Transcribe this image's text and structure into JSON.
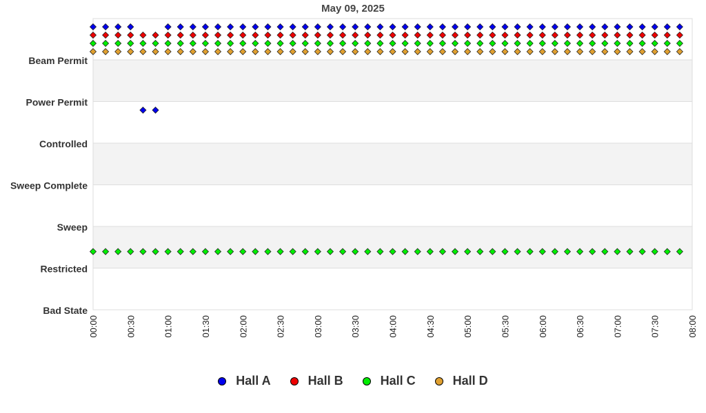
{
  "chart_data": {
    "type": "scatter",
    "title": "May 09, 2025",
    "xlabel": "",
    "ylabel": "",
    "x_ticks": [
      "00:00",
      "00:30",
      "01:00",
      "01:30",
      "02:00",
      "02:30",
      "03:00",
      "03:30",
      "04:00",
      "04:30",
      "05:00",
      "05:30",
      "06:00",
      "06:30",
      "07:00",
      "07:30",
      "08:00"
    ],
    "xlim": [
      "00:00",
      "08:00"
    ],
    "y_categories": [
      "Beam Permit",
      "Power Permit",
      "Controlled",
      "Sweep Complete",
      "Sweep",
      "Restricted",
      "Bad State"
    ],
    "grid": "alternating horizontal bands",
    "legend_position": "bottom",
    "sample_interval_minutes": 10,
    "series": [
      {
        "name": "Hall A",
        "color": "#0000ee",
        "overrides": [
          {
            "time": "00:30",
            "state": "Beam Permit"
          },
          {
            "time": "00:40",
            "state": "Power Permit"
          },
          {
            "time": "00:50",
            "state": "Power Permit"
          },
          {
            "time": "01:00",
            "state": "Beam Permit"
          }
        ],
        "default_state": "Beam Permit",
        "times": [
          "00:00",
          "00:10",
          "00:20",
          "00:30",
          "00:40",
          "00:50",
          "01:00",
          "01:10",
          "01:20",
          "01:30",
          "01:40",
          "01:50",
          "02:00",
          "02:10",
          "02:20",
          "02:30",
          "02:40",
          "02:50",
          "03:00",
          "03:10",
          "03:20",
          "03:30",
          "03:40",
          "03:50",
          "04:00",
          "04:10",
          "04:20",
          "04:30",
          "04:40",
          "04:50",
          "05:00",
          "05:10",
          "05:20",
          "05:30",
          "05:40",
          "05:50",
          "06:00",
          "06:10",
          "06:20",
          "06:30",
          "06:40",
          "06:50",
          "07:00",
          "07:10",
          "07:20",
          "07:30",
          "07:40",
          "07:50"
        ],
        "states": [
          "Beam Permit",
          "Beam Permit",
          "Beam Permit",
          "Beam Permit",
          "Power Permit",
          "Power Permit",
          "Beam Permit",
          "Beam Permit",
          "Beam Permit",
          "Beam Permit",
          "Beam Permit",
          "Beam Permit",
          "Beam Permit",
          "Beam Permit",
          "Beam Permit",
          "Beam Permit",
          "Beam Permit",
          "Beam Permit",
          "Beam Permit",
          "Beam Permit",
          "Beam Permit",
          "Beam Permit",
          "Beam Permit",
          "Beam Permit",
          "Beam Permit",
          "Beam Permit",
          "Beam Permit",
          "Beam Permit",
          "Beam Permit",
          "Beam Permit",
          "Beam Permit",
          "Beam Permit",
          "Beam Permit",
          "Beam Permit",
          "Beam Permit",
          "Beam Permit",
          "Beam Permit",
          "Beam Permit",
          "Beam Permit",
          "Beam Permit",
          "Beam Permit",
          "Beam Permit",
          "Beam Permit",
          "Beam Permit",
          "Beam Permit",
          "Beam Permit",
          "Beam Permit",
          "Beam Permit"
        ]
      },
      {
        "name": "Hall B",
        "color": "#ee0000",
        "times": [
          "00:00",
          "00:10",
          "00:20",
          "00:30",
          "00:40",
          "00:50",
          "01:00",
          "01:10",
          "01:20",
          "01:30",
          "01:40",
          "01:50",
          "02:00",
          "02:10",
          "02:20",
          "02:30",
          "02:40",
          "02:50",
          "03:00",
          "03:10",
          "03:20",
          "03:30",
          "03:40",
          "03:50",
          "04:00",
          "04:10",
          "04:20",
          "04:30",
          "04:40",
          "04:50",
          "05:00",
          "05:10",
          "05:20",
          "05:30",
          "05:40",
          "05:50",
          "06:00",
          "06:10",
          "06:20",
          "06:30",
          "06:40",
          "06:50",
          "07:00",
          "07:10",
          "07:20",
          "07:30",
          "07:40",
          "07:50"
        ],
        "states": [
          "Beam Permit",
          "Beam Permit",
          "Beam Permit",
          "Beam Permit",
          "Beam Permit",
          "Beam Permit",
          "Beam Permit",
          "Beam Permit",
          "Beam Permit",
          "Beam Permit",
          "Beam Permit",
          "Beam Permit",
          "Beam Permit",
          "Beam Permit",
          "Beam Permit",
          "Beam Permit",
          "Beam Permit",
          "Beam Permit",
          "Beam Permit",
          "Beam Permit",
          "Beam Permit",
          "Beam Permit",
          "Beam Permit",
          "Beam Permit",
          "Beam Permit",
          "Beam Permit",
          "Beam Permit",
          "Beam Permit",
          "Beam Permit",
          "Beam Permit",
          "Beam Permit",
          "Beam Permit",
          "Beam Permit",
          "Beam Permit",
          "Beam Permit",
          "Beam Permit",
          "Beam Permit",
          "Beam Permit",
          "Beam Permit",
          "Beam Permit",
          "Beam Permit",
          "Beam Permit",
          "Beam Permit",
          "Beam Permit",
          "Beam Permit",
          "Beam Permit",
          "Beam Permit",
          "Beam Permit"
        ]
      },
      {
        "name": "Hall C",
        "color": "#00ee00",
        "times": [
          "00:00",
          "00:10",
          "00:20",
          "00:30",
          "00:40",
          "00:50",
          "01:00",
          "01:10",
          "01:20",
          "01:30",
          "01:40",
          "01:50",
          "02:00",
          "02:10",
          "02:20",
          "02:30",
          "02:40",
          "02:50",
          "03:00",
          "03:10",
          "03:20",
          "03:30",
          "03:40",
          "03:50",
          "04:00",
          "04:10",
          "04:20",
          "04:30",
          "04:40",
          "04:50",
          "05:00",
          "05:10",
          "05:20",
          "05:30",
          "05:40",
          "05:50",
          "06:00",
          "06:10",
          "06:20",
          "06:30",
          "06:40",
          "06:50",
          "07:00",
          "07:10",
          "07:20",
          "07:30",
          "07:40",
          "07:50"
        ],
        "states": [
          "Beam Permit",
          "Beam Permit",
          "Beam Permit",
          "Beam Permit",
          "Beam Permit",
          "Beam Permit",
          "Beam Permit",
          "Beam Permit",
          "Beam Permit",
          "Beam Permit",
          "Beam Permit",
          "Beam Permit",
          "Beam Permit",
          "Beam Permit",
          "Beam Permit",
          "Beam Permit",
          "Beam Permit",
          "Beam Permit",
          "Beam Permit",
          "Beam Permit",
          "Beam Permit",
          "Beam Permit",
          "Beam Permit",
          "Beam Permit",
          "Beam Permit",
          "Beam Permit",
          "Beam Permit",
          "Beam Permit",
          "Beam Permit",
          "Beam Permit",
          "Beam Permit",
          "Beam Permit",
          "Beam Permit",
          "Beam Permit",
          "Beam Permit",
          "Beam Permit",
          "Beam Permit",
          "Beam Permit",
          "Beam Permit",
          "Beam Permit",
          "Beam Permit",
          "Beam Permit",
          "Beam Permit",
          "Beam Permit",
          "Beam Permit",
          "Beam Permit",
          "Beam Permit",
          "Beam Permit"
        ]
      },
      {
        "name": "Hall D",
        "color": "#e0a030",
        "times": [
          "00:00",
          "00:10",
          "00:20",
          "00:30",
          "00:40",
          "00:50",
          "01:00",
          "01:10",
          "01:20",
          "01:30",
          "01:40",
          "01:50",
          "02:00",
          "02:10",
          "02:20",
          "02:30",
          "02:40",
          "02:50",
          "03:00",
          "03:10",
          "03:20",
          "03:30",
          "03:40",
          "03:50",
          "04:00",
          "04:10",
          "04:20",
          "04:30",
          "04:40",
          "04:50",
          "05:00",
          "05:10",
          "05:20",
          "05:30",
          "05:40",
          "05:50",
          "06:00",
          "06:10",
          "06:20",
          "06:30",
          "06:40",
          "06:50",
          "07:00",
          "07:10",
          "07:20",
          "07:30",
          "07:40",
          "07:50"
        ],
        "states": [
          "Beam Permit",
          "Beam Permit",
          "Beam Permit",
          "Beam Permit",
          "Beam Permit",
          "Beam Permit",
          "Beam Permit",
          "Beam Permit",
          "Beam Permit",
          "Beam Permit",
          "Beam Permit",
          "Beam Permit",
          "Beam Permit",
          "Beam Permit",
          "Beam Permit",
          "Beam Permit",
          "Beam Permit",
          "Beam Permit",
          "Beam Permit",
          "Beam Permit",
          "Beam Permit",
          "Beam Permit",
          "Beam Permit",
          "Beam Permit",
          "Beam Permit",
          "Beam Permit",
          "Beam Permit",
          "Beam Permit",
          "Beam Permit",
          "Beam Permit",
          "Beam Permit",
          "Beam Permit",
          "Beam Permit",
          "Beam Permit",
          "Beam Permit",
          "Beam Permit",
          "Beam Permit",
          "Beam Permit",
          "Beam Permit",
          "Beam Permit",
          "Beam Permit",
          "Beam Permit",
          "Beam Permit",
          "Beam Permit",
          "Beam Permit",
          "Beam Permit",
          "Beam Permit",
          "Beam Permit"
        ]
      },
      {
        "name": "Hall C",
        "color": "#00ee00",
        "times": [
          "00:00",
          "00:10",
          "00:20",
          "00:30",
          "00:40",
          "00:50",
          "01:00",
          "01:10",
          "01:20",
          "01:30",
          "01:40",
          "01:50",
          "02:00",
          "02:10",
          "02:20",
          "02:30",
          "02:40",
          "02:50",
          "03:00",
          "03:10",
          "03:20",
          "03:30",
          "03:40",
          "03:50",
          "04:00",
          "04:10",
          "04:20",
          "04:30",
          "04:40",
          "04:50",
          "05:00",
          "05:10",
          "05:20",
          "05:30",
          "05:40",
          "05:50",
          "06:00",
          "06:10",
          "06:20",
          "06:30",
          "06:40",
          "06:50",
          "07:00",
          "07:10",
          "07:20",
          "07:30",
          "07:40",
          "07:50"
        ],
        "states": [
          "Sweep",
          "Sweep",
          "Sweep",
          "Sweep",
          "Sweep",
          "Sweep",
          "Sweep",
          "Sweep",
          "Sweep",
          "Sweep",
          "Sweep",
          "Sweep",
          "Sweep",
          "Sweep",
          "Sweep",
          "Sweep",
          "Sweep",
          "Sweep",
          "Sweep",
          "Sweep",
          "Sweep",
          "Sweep",
          "Sweep",
          "Sweep",
          "Sweep",
          "Sweep",
          "Sweep",
          "Sweep",
          "Sweep",
          "Sweep",
          "Sweep",
          "Sweep",
          "Sweep",
          "Sweep",
          "Sweep",
          "Sweep",
          "Sweep",
          "Sweep",
          "Sweep",
          "Sweep",
          "Sweep",
          "Sweep",
          "Sweep",
          "Sweep",
          "Sweep",
          "Sweep",
          "Sweep",
          "Sweep"
        ],
        "legend": false
      }
    ],
    "legend": [
      {
        "name": "Hall A",
        "color": "#0000ee"
      },
      {
        "name": "Hall B",
        "color": "#ee0000"
      },
      {
        "name": "Hall C",
        "color": "#00ee00"
      },
      {
        "name": "Hall D",
        "color": "#e0a030"
      }
    ]
  }
}
